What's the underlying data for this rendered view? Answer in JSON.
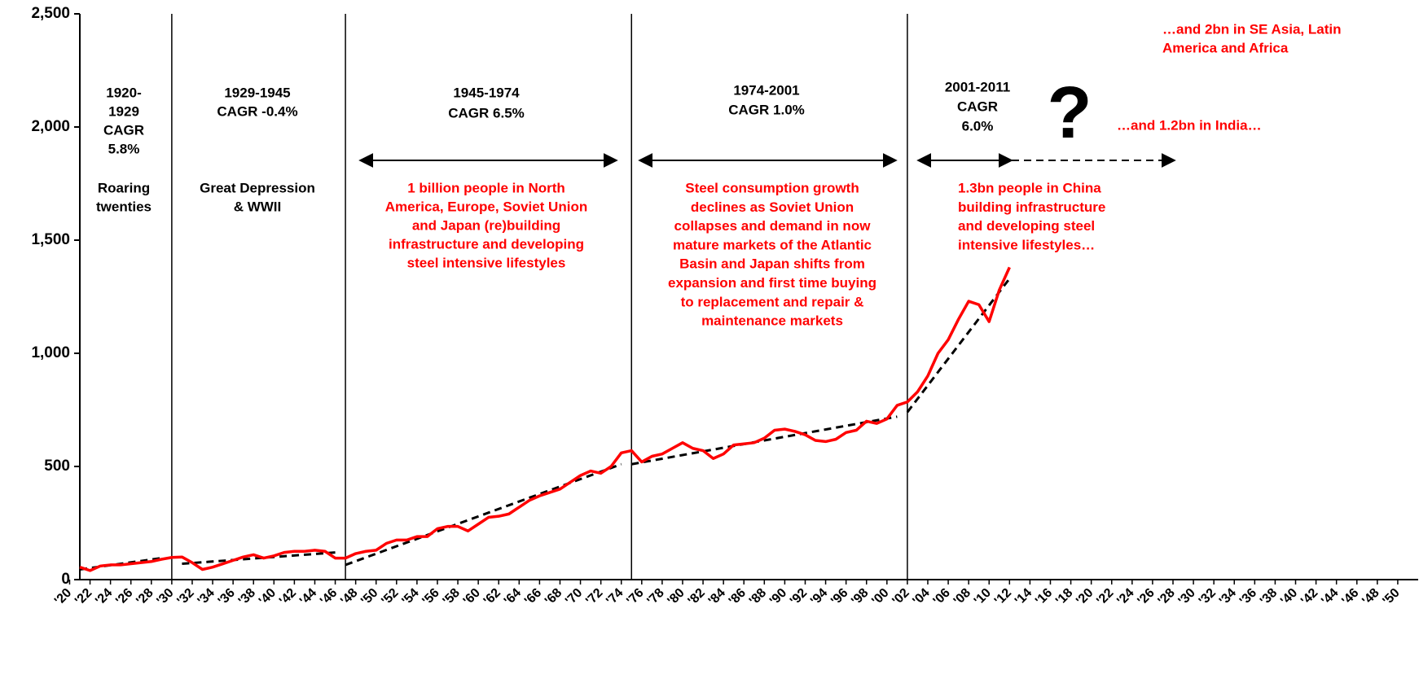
{
  "chart_data": {
    "type": "line",
    "xlim": [
      1921,
      2052
    ],
    "xticks": [
      {
        "value": 1920,
        "label": "'20"
      },
      {
        "value": 1922,
        "label": "'22"
      },
      {
        "value": 1924,
        "label": "'24"
      },
      {
        "value": 1926,
        "label": "'26"
      },
      {
        "value": 1928,
        "label": "'28"
      },
      {
        "value": 1930,
        "label": "'30"
      },
      {
        "value": 1932,
        "label": "'32"
      },
      {
        "value": 1934,
        "label": "'34"
      },
      {
        "value": 1936,
        "label": "'36"
      },
      {
        "value": 1938,
        "label": "'38"
      },
      {
        "value": 1940,
        "label": "'40"
      },
      {
        "value": 1942,
        "label": "'42"
      },
      {
        "value": 1944,
        "label": "'44"
      },
      {
        "value": 1946,
        "label": "'46"
      },
      {
        "value": 1948,
        "label": "'48"
      },
      {
        "value": 1950,
        "label": "'50"
      },
      {
        "value": 1952,
        "label": "'52"
      },
      {
        "value": 1954,
        "label": "'54"
      },
      {
        "value": 1956,
        "label": "'56"
      },
      {
        "value": 1958,
        "label": "'58"
      },
      {
        "value": 1960,
        "label": "'60"
      },
      {
        "value": 1962,
        "label": "'62"
      },
      {
        "value": 1964,
        "label": "'64"
      },
      {
        "value": 1966,
        "label": "'66"
      },
      {
        "value": 1968,
        "label": "'68"
      },
      {
        "value": 1970,
        "label": "'70"
      },
      {
        "value": 1972,
        "label": "'72"
      },
      {
        "value": 1974,
        "label": "'74"
      },
      {
        "value": 1976,
        "label": "'76"
      },
      {
        "value": 1978,
        "label": "'78"
      },
      {
        "value": 1980,
        "label": "'80"
      },
      {
        "value": 1982,
        "label": "'82"
      },
      {
        "value": 1984,
        "label": "'84"
      },
      {
        "value": 1986,
        "label": "'86"
      },
      {
        "value": 1988,
        "label": "'88"
      },
      {
        "value": 1990,
        "label": "'90"
      },
      {
        "value": 1992,
        "label": "'92"
      },
      {
        "value": 1994,
        "label": "'94"
      },
      {
        "value": 1996,
        "label": "'96"
      },
      {
        "value": 1998,
        "label": "'98"
      },
      {
        "value": 2000,
        "label": "'00"
      },
      {
        "value": 2002,
        "label": "'02"
      },
      {
        "value": 2004,
        "label": "'04"
      },
      {
        "value": 2006,
        "label": "'06"
      },
      {
        "value": 2008,
        "label": "'08"
      },
      {
        "value": 2010,
        "label": "'10"
      },
      {
        "value": 2012,
        "label": "'12"
      },
      {
        "value": 2014,
        "label": "'14"
      },
      {
        "value": 2016,
        "label": "'16"
      },
      {
        "value": 2018,
        "label": "'18"
      },
      {
        "value": 2020,
        "label": "'20"
      },
      {
        "value": 2022,
        "label": "'22"
      },
      {
        "value": 2024,
        "label": "'24"
      },
      {
        "value": 2026,
        "label": "'26"
      },
      {
        "value": 2028,
        "label": "'28"
      },
      {
        "value": 2030,
        "label": "'30"
      },
      {
        "value": 2032,
        "label": "'32"
      },
      {
        "value": 2034,
        "label": "'34"
      },
      {
        "value": 2036,
        "label": "'36"
      },
      {
        "value": 2038,
        "label": "'38"
      },
      {
        "value": 2040,
        "label": "'40"
      },
      {
        "value": 2042,
        "label": "'42"
      },
      {
        "value": 2044,
        "label": "'44"
      },
      {
        "value": 2046,
        "label": "'46"
      },
      {
        "value": 2048,
        "label": "'48"
      },
      {
        "value": 2050,
        "label": "'50"
      }
    ],
    "ylim": [
      0,
      2500
    ],
    "yticks": [
      0,
      500,
      {
        "value": 1000,
        "label": "1,000"
      },
      {
        "value": 1500,
        "label": "1,500"
      },
      {
        "value": 2000,
        "label": "2,000"
      },
      {
        "value": 2500,
        "label": "2,500"
      }
    ],
    "dividers": [
      1930,
      1947,
      1975,
      2002
    ],
    "series": [
      {
        "color": "#ff0000",
        "x": [
          1921,
          1922,
          1923,
          1924,
          1925,
          1926,
          1927,
          1928,
          1929,
          1930,
          1931,
          1932,
          1933,
          1934,
          1935,
          1936,
          1937,
          1938,
          1939,
          1940,
          1941,
          1942,
          1943,
          1944,
          1945,
          1946,
          1947,
          1948,
          1949,
          1950,
          1951,
          1952,
          1953,
          1954,
          1955,
          1956,
          1957,
          1958,
          1959,
          1960,
          1961,
          1962,
          1963,
          1964,
          1965,
          1966,
          1967,
          1968,
          1969,
          1970,
          1971,
          1972,
          1973,
          1974,
          1975,
          1976,
          1977,
          1978,
          1979,
          1980,
          1981,
          1982,
          1983,
          1984,
          1985,
          1986,
          1987,
          1988,
          1989,
          1990,
          1991,
          1992,
          1993,
          1994,
          1995,
          1996,
          1997,
          1998,
          1999,
          2000,
          2001,
          2002,
          2003,
          2004,
          2005,
          2006,
          2007,
          2008,
          2009,
          2010,
          2011,
          2012
        ],
        "values": [
          55,
          40,
          60,
          65,
          65,
          70,
          75,
          80,
          90,
          98,
          100,
          75,
          45,
          55,
          70,
          85,
          100,
          110,
          95,
          105,
          120,
          125,
          125,
          130,
          125,
          95,
          95,
          115,
          125,
          130,
          160,
          175,
          175,
          190,
          190,
          225,
          235,
          235,
          215,
          245,
          275,
          280,
          290,
          320,
          350,
          370,
          385,
          400,
          430,
          460,
          480,
          470,
          500,
          560,
          570,
          520,
          545,
          555,
          580,
          605,
          580,
          570,
          535,
          555,
          595,
          600,
          605,
          625,
          660,
          665,
          655,
          640,
          615,
          610,
          620,
          650,
          660,
          700,
          690,
          710,
          770,
          785,
          830,
          900,
          1000,
          1060,
          1150,
          1230,
          1215,
          1140,
          1280,
          1380
        ]
      }
    ],
    "trends": [
      {
        "x": [
          1921,
          1929
        ],
        "values": [
          45,
          95
        ]
      },
      {
        "x": [
          1931,
          1946
        ],
        "values": [
          70,
          120
        ]
      },
      {
        "x": [
          1947,
          1974
        ],
        "values": [
          65,
          510
        ]
      },
      {
        "x": [
          1975,
          2001
        ],
        "values": [
          510,
          720
        ]
      },
      {
        "x": [
          2002,
          2012
        ],
        "values": [
          740,
          1330
        ]
      }
    ],
    "period_labels": [
      {
        "lines": [
          "1920-",
          "1929",
          "CAGR",
          "5.8%"
        ]
      },
      {
        "lines": [
          "Roaring",
          "twenties"
        ]
      },
      {
        "lines": [
          "1929-1945",
          "CAGR -0.4%"
        ]
      },
      {
        "lines": [
          "Great Depression",
          "& WWII"
        ]
      },
      {
        "lines": [
          "1945-1974",
          "CAGR 6.5%"
        ]
      },
      {
        "lines": [
          "1974-2001",
          "CAGR 1.0%"
        ]
      },
      {
        "lines": [
          "2001-2011",
          "CAGR",
          "6.0%"
        ]
      },
      {
        "lines": [
          "?"
        ]
      }
    ],
    "annotations": [
      {
        "lines": [
          "1 billion people in North",
          "America, Europe, Soviet Union",
          "and Japan (re)building",
          "infrastructure and developing",
          "steel intensive lifestyles"
        ]
      },
      {
        "lines": [
          "Steel consumption growth",
          "declines as Soviet Union",
          "collapses and demand in now",
          "mature markets of the Atlantic",
          "Basin and Japan shifts from",
          "expansion and first time buying",
          "to replacement and repair &",
          "maintenance markets"
        ]
      },
      {
        "lines": [
          "1.3bn people in China",
          "building infrastructure",
          "and developing steel",
          "intensive lifestyles…"
        ]
      },
      {
        "lines": [
          "…and 1.2bn in India…"
        ]
      },
      {
        "lines": [
          "…and  2bn in SE Asia, Latin",
          "America and Africa"
        ]
      }
    ]
  }
}
